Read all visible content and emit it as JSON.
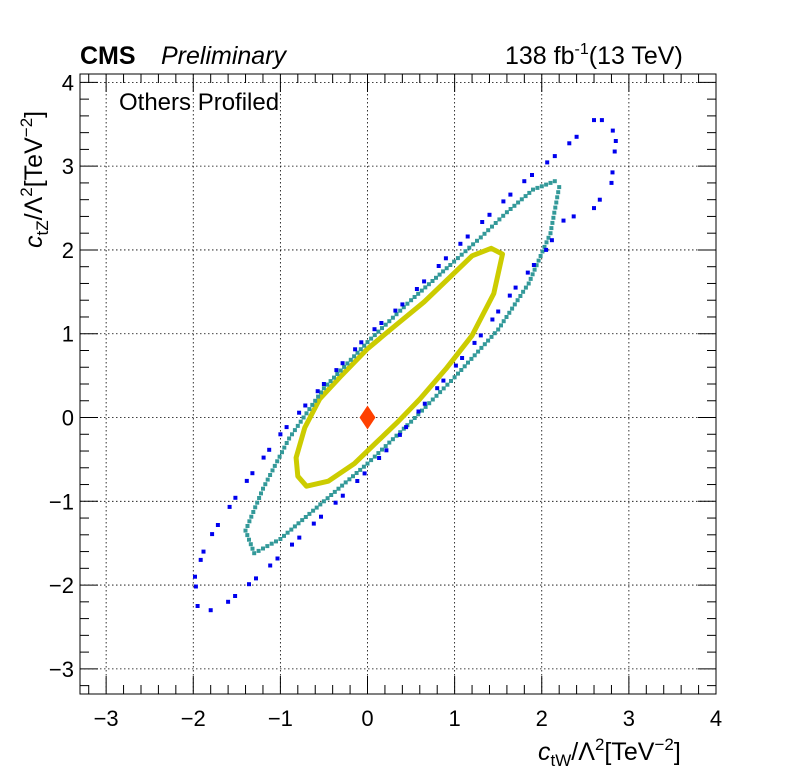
{
  "header": {
    "experiment": "CMS",
    "status": "Preliminary",
    "lumi": "138 fb",
    "lumi_exponent": "-1",
    "energy": "(13 TeV)"
  },
  "annotation": "Others Profiled",
  "axes": {
    "x_symbol": "c",
    "x_subscript": "tW",
    "x_units": "/Λ",
    "x_units_exp": "2",
    "x_units_tail": "[TeV",
    "x_units_tail_exp": "−2",
    "x_close": "]",
    "y_symbol": "c",
    "y_subscript": "tZ",
    "y_units": "/Λ",
    "y_units_exp": "2",
    "y_units_tail": "[TeV",
    "y_units_tail_exp": "−2",
    "y_close": "]"
  },
  "chart_data": {
    "type": "scatter",
    "title": "",
    "xlabel": "c_tW/Λ^2 [TeV^-2]",
    "ylabel": "c_tZ/Λ^2 [TeV^-2]",
    "xlim": [
      -3.3,
      4.0
    ],
    "ylim": [
      -3.3,
      4.1
    ],
    "x_ticks": [
      -3,
      -2,
      -1,
      0,
      1,
      2,
      3,
      4
    ],
    "y_ticks": [
      -3,
      -2,
      -1,
      0,
      1,
      2,
      3,
      4
    ],
    "x_tick_labels": [
      "−3",
      "−2",
      "−1",
      "0",
      "1",
      "2",
      "3",
      "4"
    ],
    "y_tick_labels": [
      "−3",
      "−2",
      "−1",
      "0",
      "1",
      "2",
      "3",
      "4"
    ],
    "grid": true,
    "best_fit": {
      "x": 0.0,
      "y": 0.0,
      "color": "#ff4000"
    },
    "contours": [
      {
        "color": "#cccc00",
        "style": "solid-thick",
        "points": [
          [
            1.55,
            1.95
          ],
          [
            1.42,
            2.02
          ],
          [
            1.2,
            1.93
          ],
          [
            0.95,
            1.68
          ],
          [
            0.65,
            1.38
          ],
          [
            0.3,
            1.08
          ],
          [
            0.0,
            0.82
          ],
          [
            -0.3,
            0.5
          ],
          [
            -0.55,
            0.22
          ],
          [
            -0.72,
            -0.12
          ],
          [
            -0.82,
            -0.48
          ],
          [
            -0.8,
            -0.7
          ],
          [
            -0.7,
            -0.82
          ],
          [
            -0.45,
            -0.76
          ],
          [
            -0.15,
            -0.55
          ],
          [
            0.1,
            -0.3
          ],
          [
            0.35,
            -0.05
          ],
          [
            0.6,
            0.22
          ],
          [
            0.9,
            0.58
          ],
          [
            1.2,
            0.98
          ],
          [
            1.45,
            1.48
          ],
          [
            1.55,
            1.95
          ]
        ]
      },
      {
        "color": "#339999",
        "style": "dotted-thick",
        "points": [
          [
            2.15,
            2.82
          ],
          [
            1.9,
            2.72
          ],
          [
            1.6,
            2.45
          ],
          [
            1.3,
            2.15
          ],
          [
            0.95,
            1.82
          ],
          [
            0.5,
            1.4
          ],
          [
            0.0,
            0.9
          ],
          [
            -0.5,
            0.35
          ],
          [
            -0.9,
            -0.25
          ],
          [
            -1.2,
            -0.85
          ],
          [
            -1.4,
            -1.35
          ],
          [
            -1.3,
            -1.62
          ],
          [
            -1.0,
            -1.45
          ],
          [
            -0.5,
            -1.0
          ],
          [
            0.0,
            -0.55
          ],
          [
            0.5,
            -0.05
          ],
          [
            1.0,
            0.48
          ],
          [
            1.5,
            1.05
          ],
          [
            1.85,
            1.6
          ],
          [
            2.1,
            2.2
          ],
          [
            2.2,
            2.75
          ],
          [
            2.15,
            2.82
          ]
        ]
      },
      {
        "color": "#0000ee",
        "style": "sparse-dots",
        "points": [
          [
            2.85,
            3.3
          ],
          [
            2.78,
            3.55
          ],
          [
            2.6,
            3.55
          ],
          [
            2.4,
            3.35
          ],
          [
            2.15,
            3.12
          ],
          [
            1.8,
            2.82
          ],
          [
            1.4,
            2.42
          ],
          [
            0.9,
            1.9
          ],
          [
            0.4,
            1.35
          ],
          [
            0.0,
            0.98
          ],
          [
            -0.5,
            0.4
          ],
          [
            -1.0,
            -0.2
          ],
          [
            -1.45,
            -0.85
          ],
          [
            -1.85,
            -1.5
          ],
          [
            -1.98,
            -1.9
          ],
          [
            -1.95,
            -2.25
          ],
          [
            -1.8,
            -2.3
          ],
          [
            -1.6,
            -2.2
          ],
          [
            -1.2,
            -1.85
          ],
          [
            -0.7,
            -1.35
          ],
          [
            -0.2,
            -0.85
          ],
          [
            0.3,
            -0.3
          ],
          [
            0.8,
            0.35
          ],
          [
            1.3,
            0.98
          ],
          [
            1.7,
            1.55
          ],
          [
            2.05,
            2.0
          ],
          [
            2.25,
            2.35
          ],
          [
            2.6,
            2.5
          ],
          [
            2.8,
            2.8
          ],
          [
            2.85,
            3.3
          ]
        ]
      }
    ]
  }
}
